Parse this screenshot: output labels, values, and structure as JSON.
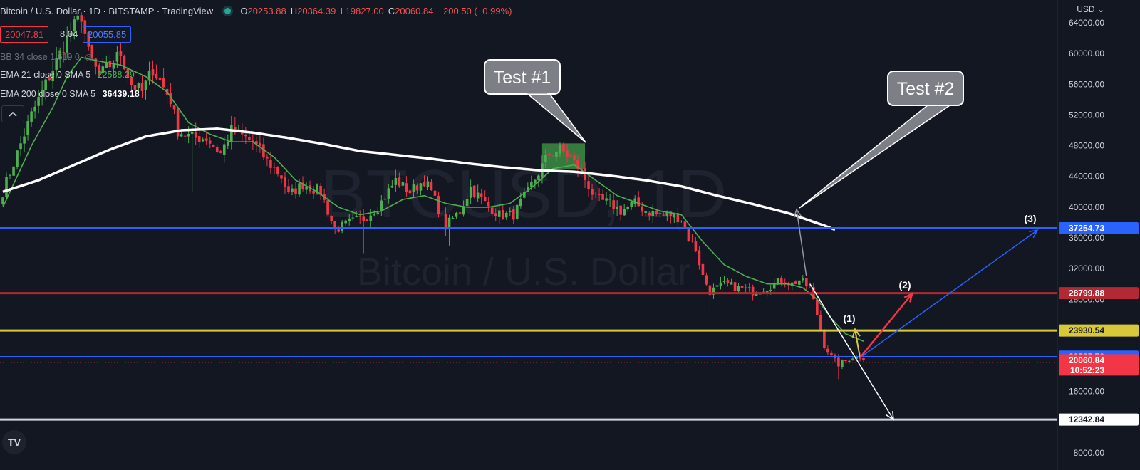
{
  "header": {
    "title": "Bitcoin / U.S. Dollar · 1D · BITSTAMP · TradingView",
    "ohlc": [
      {
        "k": "O",
        "v": "20253.88"
      },
      {
        "k": "H",
        "v": "20364.39"
      },
      {
        "k": "L",
        "v": "19827.00"
      },
      {
        "k": "C",
        "v": "20060.84"
      },
      {
        "k": "",
        "v": "−200.50 (−0.99%)"
      }
    ],
    "bid": "20047.81",
    "spread": "8.04",
    "ask": "20055.85"
  },
  "indicators": {
    "bb": "BB 34 close 1.619 0",
    "ema21_label": "EMA 21 close 0 SMA 5",
    "ema21_value": "22538.29",
    "ema200_label": "EMA 200 close 0 SMA 5",
    "ema200_value": "36439.18"
  },
  "currency": "USD",
  "colors": {
    "background": "#131722",
    "bull": "#4caf50",
    "bear": "#f23645",
    "ema21": "#4caf50",
    "ema200": "#ffffff",
    "blue": "#2962ff",
    "red_line": "#b22833",
    "yellow": "#d8c93a"
  },
  "chart_data": {
    "type": "candlestick",
    "symbol": "Bitcoin / U.S. Dollar",
    "watermark_big": "BTCUSD, 1D",
    "watermark_small": "Bitcoin / U.S. Dollar",
    "ylim": [
      6000,
      66000
    ],
    "y_ticks": [
      "64000.00",
      "60000.00",
      "56000.00",
      "52000.00",
      "48000.00",
      "44000.00",
      "40000.00",
      "36000.00",
      "32000.00",
      "28000.00",
      "24000.00",
      "20000.00",
      "16000.00",
      "12000.00",
      "8000.00"
    ],
    "anchors": [
      [
        0,
        42000
      ],
      [
        8,
        52000
      ],
      [
        14,
        58000
      ],
      [
        18,
        62000
      ],
      [
        22,
        65000
      ],
      [
        24,
        60000
      ],
      [
        27,
        57000
      ],
      [
        33,
        60000
      ],
      [
        36,
        56000
      ],
      [
        39,
        55000
      ],
      [
        42,
        58000
      ],
      [
        47,
        54000
      ],
      [
        49,
        50000
      ],
      [
        53,
        49000
      ],
      [
        57,
        49000
      ],
      [
        61,
        47000
      ],
      [
        64,
        50000
      ],
      [
        68,
        49000
      ],
      [
        70,
        48500
      ],
      [
        74,
        46000
      ],
      [
        78,
        44000
      ],
      [
        80,
        41500
      ],
      [
        84,
        43000
      ],
      [
        89,
        42000
      ],
      [
        93,
        37000
      ],
      [
        97,
        38000
      ],
      [
        101,
        38500
      ],
      [
        105,
        40000
      ],
      [
        110,
        43500
      ],
      [
        114,
        42000
      ],
      [
        118,
        43500
      ],
      [
        120,
        42000
      ],
      [
        124,
        37500
      ],
      [
        128,
        39500
      ],
      [
        131,
        42500
      ],
      [
        135,
        40500
      ],
      [
        139,
        39000
      ],
      [
        143,
        39000
      ],
      [
        147,
        42000
      ],
      [
        150,
        44500
      ],
      [
        153,
        47000
      ],
      [
        156,
        47500
      ],
      [
        159,
        46500
      ],
      [
        162,
        44500
      ],
      [
        166,
        41000
      ],
      [
        170,
        40500
      ],
      [
        173,
        39500
      ],
      [
        177,
        40500
      ],
      [
        180,
        39500
      ],
      [
        184,
        39000
      ],
      [
        187,
        39000
      ],
      [
        190,
        38500
      ],
      [
        192,
        36000
      ],
      [
        194,
        34500
      ],
      [
        196,
        31000
      ],
      [
        198,
        29000
      ],
      [
        202,
        30000
      ],
      [
        206,
        29500
      ],
      [
        210,
        29000
      ],
      [
        214,
        29500
      ],
      [
        218,
        30500
      ],
      [
        221,
        30000
      ],
      [
        223,
        30500
      ],
      [
        226,
        29500
      ],
      [
        228,
        26000
      ],
      [
        230,
        22000
      ],
      [
        232,
        20500
      ],
      [
        234,
        19500
      ],
      [
        236,
        20000
      ],
      [
        238,
        20500
      ],
      [
        240,
        20500
      ],
      [
        241,
        20060.84
      ]
    ],
    "ema21": [
      [
        0,
        40000
      ],
      [
        8,
        48000
      ],
      [
        14,
        53000
      ],
      [
        18,
        57000
      ],
      [
        22,
        59500
      ],
      [
        27,
        59000
      ],
      [
        33,
        58500
      ],
      [
        40,
        57000
      ],
      [
        46,
        55000
      ],
      [
        52,
        51000
      ],
      [
        58,
        49500
      ],
      [
        64,
        48500
      ],
      [
        70,
        48500
      ],
      [
        76,
        46500
      ],
      [
        82,
        43500
      ],
      [
        88,
        42000
      ],
      [
        94,
        40000
      ],
      [
        100,
        39000
      ],
      [
        106,
        39500
      ],
      [
        112,
        41000
      ],
      [
        118,
        41500
      ],
      [
        124,
        40500
      ],
      [
        130,
        40000
      ],
      [
        136,
        40000
      ],
      [
        142,
        40500
      ],
      [
        148,
        42500
      ],
      [
        154,
        45000
      ],
      [
        160,
        45500
      ],
      [
        166,
        43500
      ],
      [
        172,
        41500
      ],
      [
        178,
        40500
      ],
      [
        184,
        39500
      ],
      [
        190,
        39000
      ],
      [
        196,
        35500
      ],
      [
        202,
        32500
      ],
      [
        208,
        31000
      ],
      [
        214,
        30000
      ],
      [
        220,
        30000
      ],
      [
        224,
        29500
      ],
      [
        228,
        28000
      ],
      [
        232,
        25500
      ],
      [
        236,
        23500
      ],
      [
        241,
        22538.29
      ]
    ],
    "ema200": [
      [
        0,
        42000
      ],
      [
        10,
        43500
      ],
      [
        20,
        45500
      ],
      [
        30,
        47500
      ],
      [
        40,
        49200
      ],
      [
        50,
        50000
      ],
      [
        60,
        50200
      ],
      [
        70,
        49700
      ],
      [
        80,
        49000
      ],
      [
        90,
        48200
      ],
      [
        100,
        47300
      ],
      [
        110,
        46800
      ],
      [
        120,
        46300
      ],
      [
        130,
        45700
      ],
      [
        140,
        45200
      ],
      [
        150,
        44800
      ],
      [
        160,
        44600
      ],
      [
        170,
        44100
      ],
      [
        180,
        43500
      ],
      [
        190,
        42700
      ],
      [
        200,
        41500
      ],
      [
        210,
        40400
      ],
      [
        220,
        39200
      ],
      [
        230,
        37600
      ],
      [
        235,
        36700
      ],
      [
        241,
        36439.18
      ]
    ],
    "horizontal_levels": [
      {
        "value": 37254.73,
        "label": "37254.73",
        "color": "#2962ff",
        "width": 3
      },
      {
        "value": 28799.88,
        "label": "28799.88",
        "color": "#b22833",
        "width": 3
      },
      {
        "value": 23930.54,
        "label": "23930.54",
        "color": "#d8c93a",
        "width": 3
      },
      {
        "value": 20535.73,
        "label": "20535.73",
        "color": "#2962ff",
        "width": 1.5
      },
      {
        "value": 12342.84,
        "label": "12342.84",
        "color": "#d1d4dc",
        "width": 3
      }
    ],
    "last_price": {
      "value": 20060.84,
      "label": "20060.84",
      "countdown": "10:52:23"
    },
    "annotations": [
      {
        "text": "Test #1",
        "anchor_bar": 157,
        "anchor_price": 48000
      },
      {
        "text": "Test #2",
        "anchor_bar": 223,
        "anchor_price": 39700
      },
      {
        "text": "(1)",
        "target_price": 23930.54
      },
      {
        "text": "(2)",
        "target_price": 28799.88
      },
      {
        "text": "(3)",
        "target_price": 37254.73
      }
    ]
  }
}
